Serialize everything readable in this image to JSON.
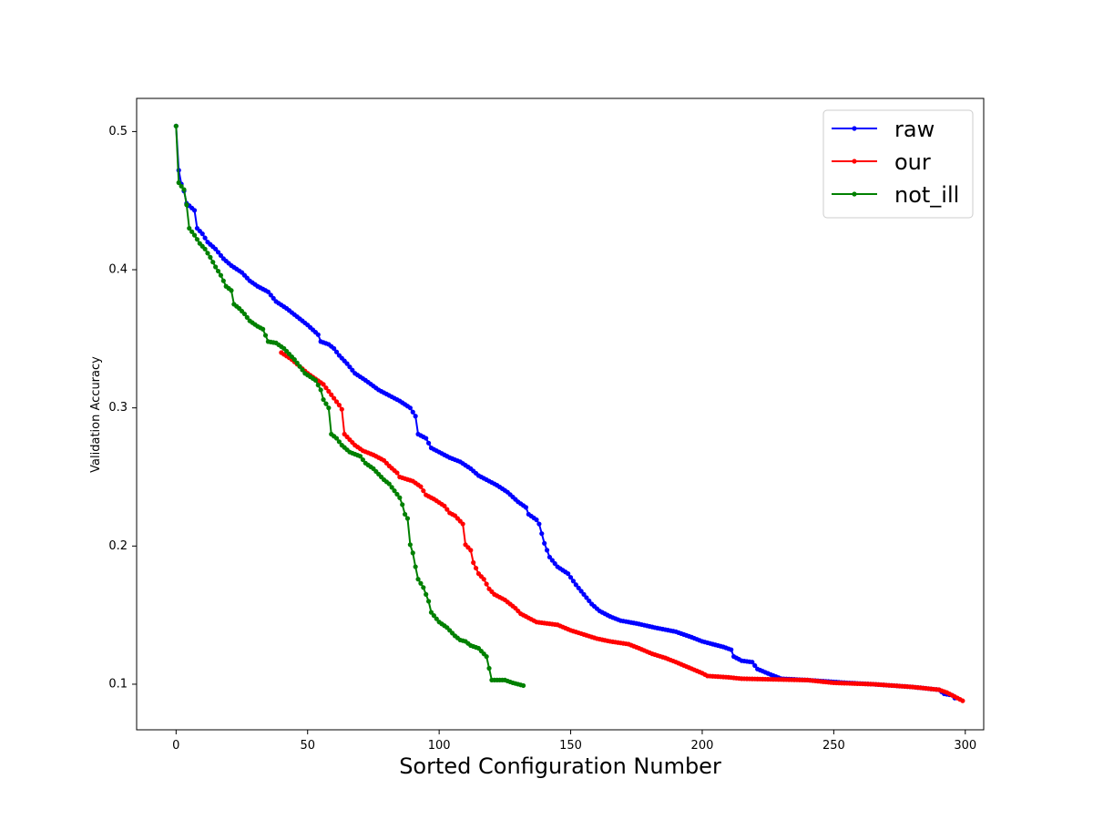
{
  "chart_data": {
    "type": "line",
    "title": "",
    "xlabel": "Sorted Configuration Number",
    "ylabel": "Validation Accuracy",
    "xlim": [
      -15,
      307
    ],
    "ylim": [
      0.067,
      0.524
    ],
    "xticks": [
      0,
      50,
      100,
      150,
      200,
      250,
      300
    ],
    "yticks": [
      0.1,
      0.2,
      0.3,
      0.4,
      0.5
    ],
    "xtick_labels": [
      "0",
      "50",
      "100",
      "150",
      "200",
      "250",
      "300"
    ],
    "ytick_labels": [
      "0.1",
      "0.2",
      "0.3",
      "0.4",
      "0.5"
    ],
    "grid": false,
    "legend": "top-right",
    "markers": "dot",
    "series": [
      {
        "name": "raw",
        "color": "#0000ff",
        "knots": [
          [
            0,
            0.504
          ],
          [
            1,
            0.472
          ],
          [
            2,
            0.462
          ],
          [
            3,
            0.457
          ],
          [
            4,
            0.448
          ],
          [
            7,
            0.443
          ],
          [
            8,
            0.43
          ],
          [
            10,
            0.426
          ],
          [
            12,
            0.42
          ],
          [
            15,
            0.415
          ],
          [
            18,
            0.408
          ],
          [
            21,
            0.403
          ],
          [
            25,
            0.398
          ],
          [
            28,
            0.392
          ],
          [
            31,
            0.388
          ],
          [
            35,
            0.384
          ],
          [
            38,
            0.377
          ],
          [
            42,
            0.372
          ],
          [
            46,
            0.366
          ],
          [
            50,
            0.36
          ],
          [
            54,
            0.353
          ],
          [
            55,
            0.348
          ],
          [
            58,
            0.346
          ],
          [
            60,
            0.343
          ],
          [
            62,
            0.338
          ],
          [
            65,
            0.332
          ],
          [
            68,
            0.325
          ],
          [
            72,
            0.32
          ],
          [
            77,
            0.313
          ],
          [
            81,
            0.309
          ],
          [
            85,
            0.305
          ],
          [
            89,
            0.3
          ],
          [
            91,
            0.294
          ],
          [
            92,
            0.281
          ],
          [
            95,
            0.278
          ],
          [
            97,
            0.271
          ],
          [
            100,
            0.268
          ],
          [
            104,
            0.264
          ],
          [
            108,
            0.261
          ],
          [
            112,
            0.256
          ],
          [
            115,
            0.251
          ],
          [
            119,
            0.247
          ],
          [
            122,
            0.244
          ],
          [
            126,
            0.239
          ],
          [
            130,
            0.232
          ],
          [
            133,
            0.228
          ],
          [
            134,
            0.223
          ],
          [
            137,
            0.219
          ],
          [
            138,
            0.216
          ],
          [
            140,
            0.202
          ],
          [
            142,
            0.192
          ],
          [
            145,
            0.185
          ],
          [
            149,
            0.18
          ],
          [
            152,
            0.172
          ],
          [
            155,
            0.165
          ],
          [
            158,
            0.158
          ],
          [
            161,
            0.153
          ],
          [
            165,
            0.149
          ],
          [
            169,
            0.146
          ],
          [
            175,
            0.144
          ],
          [
            182,
            0.141
          ],
          [
            190,
            0.138
          ],
          [
            196,
            0.134
          ],
          [
            200,
            0.131
          ],
          [
            204,
            0.129
          ],
          [
            208,
            0.127
          ],
          [
            211,
            0.125
          ],
          [
            212,
            0.12
          ],
          [
            215,
            0.117
          ],
          [
            219,
            0.116
          ],
          [
            221,
            0.111
          ],
          [
            226,
            0.107
          ],
          [
            230,
            0.104
          ],
          [
            240,
            0.103
          ],
          [
            255,
            0.101
          ],
          [
            265,
            0.1
          ],
          [
            280,
            0.098
          ],
          [
            290,
            0.096
          ],
          [
            292,
            0.093
          ],
          [
            295,
            0.092
          ],
          [
            296,
            0.09
          ]
        ]
      },
      {
        "name": "our",
        "color": "#ff0000",
        "knots": [
          [
            40,
            0.34
          ],
          [
            44,
            0.335
          ],
          [
            47,
            0.33
          ],
          [
            50,
            0.325
          ],
          [
            53,
            0.321
          ],
          [
            56,
            0.317
          ],
          [
            58,
            0.312
          ],
          [
            60,
            0.307
          ],
          [
            62,
            0.302
          ],
          [
            63,
            0.299
          ],
          [
            64,
            0.281
          ],
          [
            66,
            0.277
          ],
          [
            68,
            0.273
          ],
          [
            71,
            0.269
          ],
          [
            75,
            0.266
          ],
          [
            79,
            0.262
          ],
          [
            81,
            0.258
          ],
          [
            84,
            0.253
          ],
          [
            85,
            0.25
          ],
          [
            90,
            0.247
          ],
          [
            93,
            0.243
          ],
          [
            95,
            0.237
          ],
          [
            98,
            0.234
          ],
          [
            102,
            0.229
          ],
          [
            104,
            0.224
          ],
          [
            106,
            0.222
          ],
          [
            109,
            0.216
          ],
          [
            110,
            0.201
          ],
          [
            112,
            0.197
          ],
          [
            113,
            0.188
          ],
          [
            115,
            0.18
          ],
          [
            117,
            0.176
          ],
          [
            119,
            0.169
          ],
          [
            121,
            0.165
          ],
          [
            125,
            0.161
          ],
          [
            129,
            0.155
          ],
          [
            131,
            0.151
          ],
          [
            137,
            0.145
          ],
          [
            145,
            0.143
          ],
          [
            150,
            0.139
          ],
          [
            155,
            0.136
          ],
          [
            160,
            0.133
          ],
          [
            165,
            0.131
          ],
          [
            172,
            0.129
          ],
          [
            176,
            0.126
          ],
          [
            181,
            0.122
          ],
          [
            186,
            0.119
          ],
          [
            190,
            0.116
          ],
          [
            195,
            0.112
          ],
          [
            200,
            0.108
          ],
          [
            202,
            0.106
          ],
          [
            210,
            0.105
          ],
          [
            215,
            0.104
          ],
          [
            240,
            0.103
          ],
          [
            250,
            0.101
          ],
          [
            265,
            0.1
          ],
          [
            280,
            0.098
          ],
          [
            290,
            0.096
          ],
          [
            293,
            0.094
          ],
          [
            296,
            0.091
          ],
          [
            299,
            0.088
          ]
        ]
      },
      {
        "name": "not_ill",
        "color": "#008000",
        "knots": [
          [
            0,
            0.504
          ],
          [
            1,
            0.463
          ],
          [
            3,
            0.458
          ],
          [
            4,
            0.447
          ],
          [
            5,
            0.43
          ],
          [
            7,
            0.425
          ],
          [
            9,
            0.419
          ],
          [
            11,
            0.415
          ],
          [
            13,
            0.409
          ],
          [
            15,
            0.402
          ],
          [
            17,
            0.396
          ],
          [
            19,
            0.388
          ],
          [
            21,
            0.385
          ],
          [
            22,
            0.375
          ],
          [
            24,
            0.372
          ],
          [
            26,
            0.368
          ],
          [
            28,
            0.363
          ],
          [
            31,
            0.359
          ],
          [
            33,
            0.357
          ],
          [
            35,
            0.348
          ],
          [
            38,
            0.347
          ],
          [
            41,
            0.343
          ],
          [
            45,
            0.335
          ],
          [
            47,
            0.33
          ],
          [
            49,
            0.325
          ],
          [
            53,
            0.32
          ],
          [
            55,
            0.313
          ],
          [
            56,
            0.306
          ],
          [
            58,
            0.3
          ],
          [
            59,
            0.281
          ],
          [
            61,
            0.278
          ],
          [
            63,
            0.273
          ],
          [
            66,
            0.268
          ],
          [
            70,
            0.265
          ],
          [
            72,
            0.26
          ],
          [
            75,
            0.256
          ],
          [
            77,
            0.252
          ],
          [
            79,
            0.248
          ],
          [
            81,
            0.245
          ],
          [
            83,
            0.24
          ],
          [
            85,
            0.235
          ],
          [
            86,
            0.23
          ],
          [
            87,
            0.223
          ],
          [
            88,
            0.22
          ],
          [
            89,
            0.201
          ],
          [
            90,
            0.195
          ],
          [
            91,
            0.185
          ],
          [
            92,
            0.176
          ],
          [
            94,
            0.17
          ],
          [
            96,
            0.16
          ],
          [
            97,
            0.152
          ],
          [
            100,
            0.145
          ],
          [
            103,
            0.141
          ],
          [
            106,
            0.135
          ],
          [
            108,
            0.132
          ],
          [
            110,
            0.131
          ],
          [
            112,
            0.128
          ],
          [
            115,
            0.126
          ],
          [
            118,
            0.12
          ],
          [
            120,
            0.103
          ],
          [
            125,
            0.103
          ],
          [
            128,
            0.101
          ],
          [
            132,
            0.099
          ]
        ]
      }
    ]
  }
}
